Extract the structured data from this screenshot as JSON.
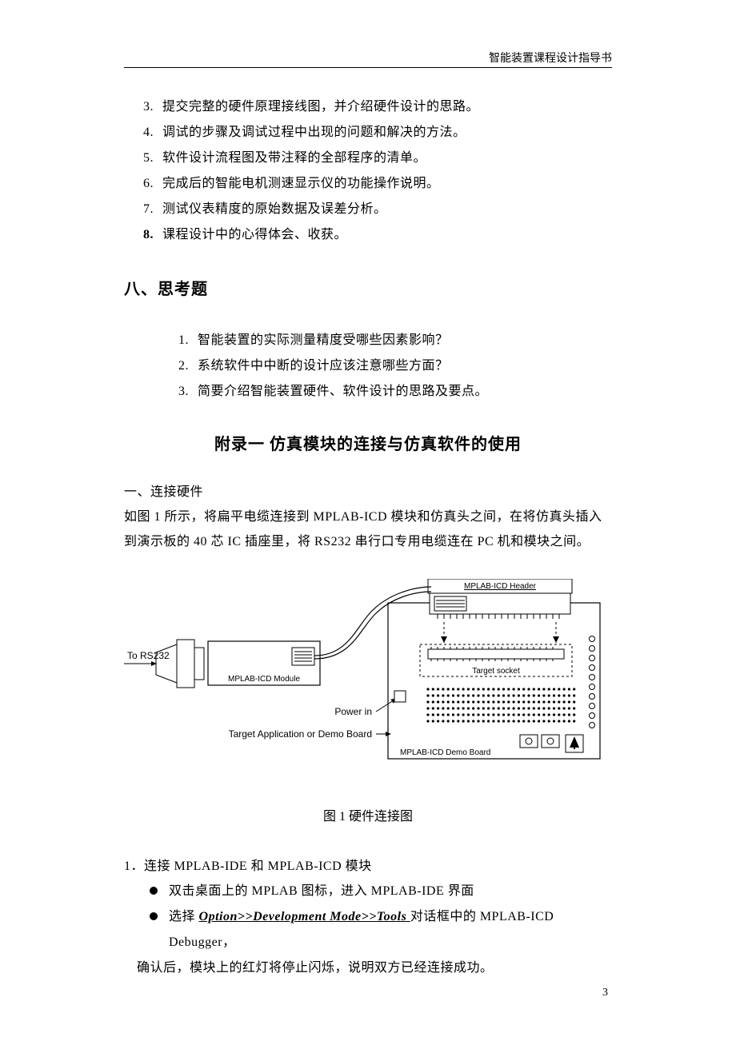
{
  "header": {
    "right_text": "智能装置课程设计指导书"
  },
  "list_a": [
    {
      "num": "3.",
      "text": "提交完整的硬件原理接线图，并介绍硬件设计的思路。"
    },
    {
      "num": "4.",
      "text": "调试的步骤及调试过程中出现的问题和解决的方法。"
    },
    {
      "num": "5.",
      "text": "软件设计流程图及带注释的全部程序的清单。"
    },
    {
      "num": "6.",
      "text": "完成后的智能电机测速显示仪的功能操作说明。"
    },
    {
      "num": "7.",
      "text": "测试仪表精度的原始数据及误差分析。"
    },
    {
      "num": "8.",
      "text": "课程设计中的心得体会、收获。",
      "bold_num": true
    }
  ],
  "section8_title": "八、思考题",
  "list_b": [
    {
      "num": "1.",
      "text": "智能装置的实际测量精度受哪些因素影响？"
    },
    {
      "num": "2.",
      "text": "系统软件中中断的设计应该注意哪些方面？"
    },
    {
      "num": "3.",
      "text": "简要介绍智能装置硬件、软件设计的思路及要点。"
    }
  ],
  "appendix_title": "附录一   仿真模块的连接与仿真软件的使用",
  "sec1": {
    "title": "一、连接硬件",
    "para": "如图 1 所示，将扁平电缆连接到 MPLAB-ICD 模块和仿真头之间，在将仿真头插入到演示板的 40 芯 IC 插座里，将 RS232 串行口专用电缆连在 PC 机和模块之间。"
  },
  "figure": {
    "caption": "图 1 硬件连接图",
    "labels": {
      "to_rs232": "To RS232",
      "module": "MPLAB-ICD Module",
      "header": "MPLAB-ICD Header",
      "target_socket": "Target socket",
      "power_in": "Power in",
      "target_app": "Target Application or Demo Board",
      "demo_board": "MPLAB-ICD Demo Board"
    },
    "colors": {
      "stroke": "#000000",
      "fill_bg": "#ffffff",
      "dash": "3,3"
    }
  },
  "sec2": {
    "num_title": "1．连接 MPLAB-IDE 和 MPLAB-ICD 模块",
    "bullets": [
      {
        "text": "双击桌面上的 MPLAB 图标，进入 MPLAB-IDE 界面"
      },
      {
        "prefix": "选择 ",
        "menu": "Option>>Development Mode>>Tools ",
        "suffix": "对话框中的 MPLAB-ICD Debugger，"
      }
    ],
    "bullet2_cont": "确认后，模块上的红灯将停止闪烁，说明双方已经连接成功。"
  },
  "page_number": "3"
}
